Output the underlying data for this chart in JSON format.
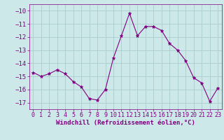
{
  "x": [
    0,
    1,
    2,
    3,
    4,
    5,
    6,
    7,
    8,
    9,
    10,
    11,
    12,
    13,
    14,
    15,
    16,
    17,
    18,
    19,
    20,
    21,
    22,
    23
  ],
  "y": [
    -14.7,
    -15.0,
    -14.8,
    -14.5,
    -14.8,
    -15.4,
    -15.8,
    -16.7,
    -16.8,
    -16.0,
    -13.6,
    -11.9,
    -10.2,
    -11.9,
    -11.2,
    -11.2,
    -11.5,
    -12.5,
    -13.0,
    -13.8,
    -15.1,
    -15.5,
    -16.9,
    -15.9
  ],
  "line_color": "#800080",
  "marker": "*",
  "marker_size": 3.5,
  "bg_color": "#cce8e8",
  "grid_color": "#aacccc",
  "xlabel": "Windchill (Refroidissement éolien,°C)",
  "xlabel_color": "#800080",
  "tick_color": "#800080",
  "ylim": [
    -17.5,
    -9.5
  ],
  "xlim": [
    -0.5,
    23.5
  ],
  "yticks": [
    -17,
    -16,
    -15,
    -14,
    -13,
    -12,
    -11,
    -10
  ],
  "xticks": [
    0,
    1,
    2,
    3,
    4,
    5,
    6,
    7,
    8,
    9,
    10,
    11,
    12,
    13,
    14,
    15,
    16,
    17,
    18,
    19,
    20,
    21,
    22,
    23
  ],
  "tick_fontsize": 6,
  "xlabel_fontsize": 6.5,
  "linewidth": 0.8
}
